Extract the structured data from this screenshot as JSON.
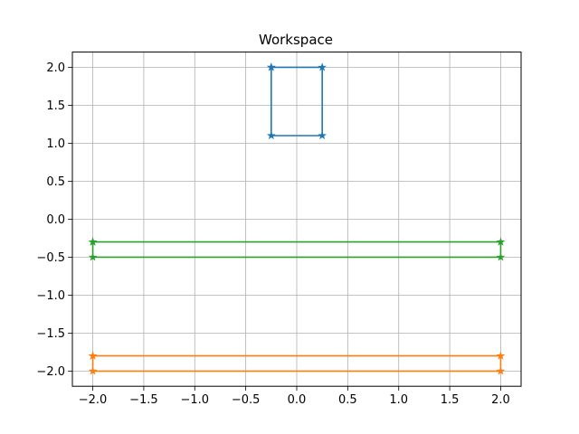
{
  "chart_data": {
    "type": "line",
    "title": "Workspace",
    "xlabel": "",
    "ylabel": "",
    "xlim": [
      -2.2,
      2.2
    ],
    "ylim": [
      -2.2,
      2.2
    ],
    "grid": true,
    "legend": "none",
    "x_ticks": [
      {
        "value": -2.0,
        "label": "−2.0"
      },
      {
        "value": -1.5,
        "label": "−1.5"
      },
      {
        "value": -1.0,
        "label": "−1.0"
      },
      {
        "value": -0.5,
        "label": "−0.5"
      },
      {
        "value": 0.0,
        "label": "0.0"
      },
      {
        "value": 0.5,
        "label": "0.5"
      },
      {
        "value": 1.0,
        "label": "1.0"
      },
      {
        "value": 1.5,
        "label": "1.5"
      },
      {
        "value": 2.0,
        "label": "2.0"
      }
    ],
    "y_ticks": [
      {
        "value": 2.0,
        "label": "2.0"
      },
      {
        "value": 1.5,
        "label": "1.5"
      },
      {
        "value": 1.0,
        "label": "1.0"
      },
      {
        "value": 0.5,
        "label": "0.5"
      },
      {
        "value": 0.0,
        "label": "0.0"
      },
      {
        "value": -0.5,
        "label": "−0.5"
      },
      {
        "value": -1.0,
        "label": "−1.0"
      },
      {
        "value": -1.5,
        "label": "−1.5"
      },
      {
        "value": -2.0,
        "label": "−2.0"
      }
    ],
    "series": [
      {
        "color": "#1f77b4",
        "marker": "star",
        "x": [
          -0.25,
          0.25,
          0.25,
          -0.25,
          -0.25
        ],
        "y": [
          2.0,
          2.0,
          1.1,
          1.1,
          2.0
        ]
      },
      {
        "color": "#ff7f0e",
        "marker": "star",
        "x": [
          -2.0,
          2.0,
          2.0,
          -2.0,
          -2.0
        ],
        "y": [
          -1.8,
          -1.8,
          -2.0,
          -2.0,
          -1.8
        ]
      },
      {
        "color": "#2ca02c",
        "marker": "star",
        "x": [
          -2.0,
          2.0,
          2.0,
          -2.0,
          -2.0
        ],
        "y": [
          -0.3,
          -0.3,
          -0.5,
          -0.5,
          -0.3
        ]
      }
    ]
  }
}
